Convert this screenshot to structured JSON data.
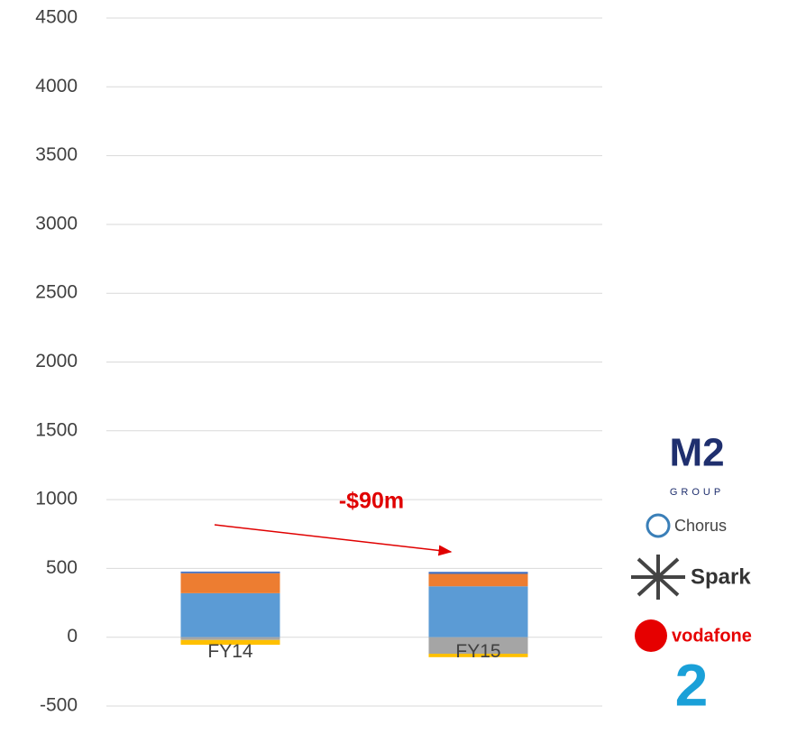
{
  "chart_data": {
    "type": "stacked_bar",
    "categories": [
      "FY14",
      "FY15"
    ],
    "series": [
      {
        "color": "#5b9bd5",
        "values": [
          320,
          370
        ]
      },
      {
        "color": "#ed7d31",
        "values": [
          145,
          90
        ]
      },
      {
        "color": "#4472c4",
        "values": [
          12,
          15
        ]
      },
      {
        "color": "#a5a5a5",
        "values": [
          -20,
          -120
        ]
      },
      {
        "color": "#ffc000",
        "values": [
          -35,
          -25
        ]
      }
    ],
    "ylim": [
      -500,
      4500
    ],
    "yticks": [
      -500,
      0,
      500,
      1000,
      1500,
      2000,
      2500,
      3000,
      3500,
      4000,
      4500
    ],
    "grid": true,
    "annotation": "-$90m"
  },
  "logos": {
    "m2": "M2",
    "m2_sub": "GROUP",
    "chorus": "Chorus",
    "spark": "Spark",
    "vodafone": "vodafone",
    "twodegrees": "2"
  }
}
